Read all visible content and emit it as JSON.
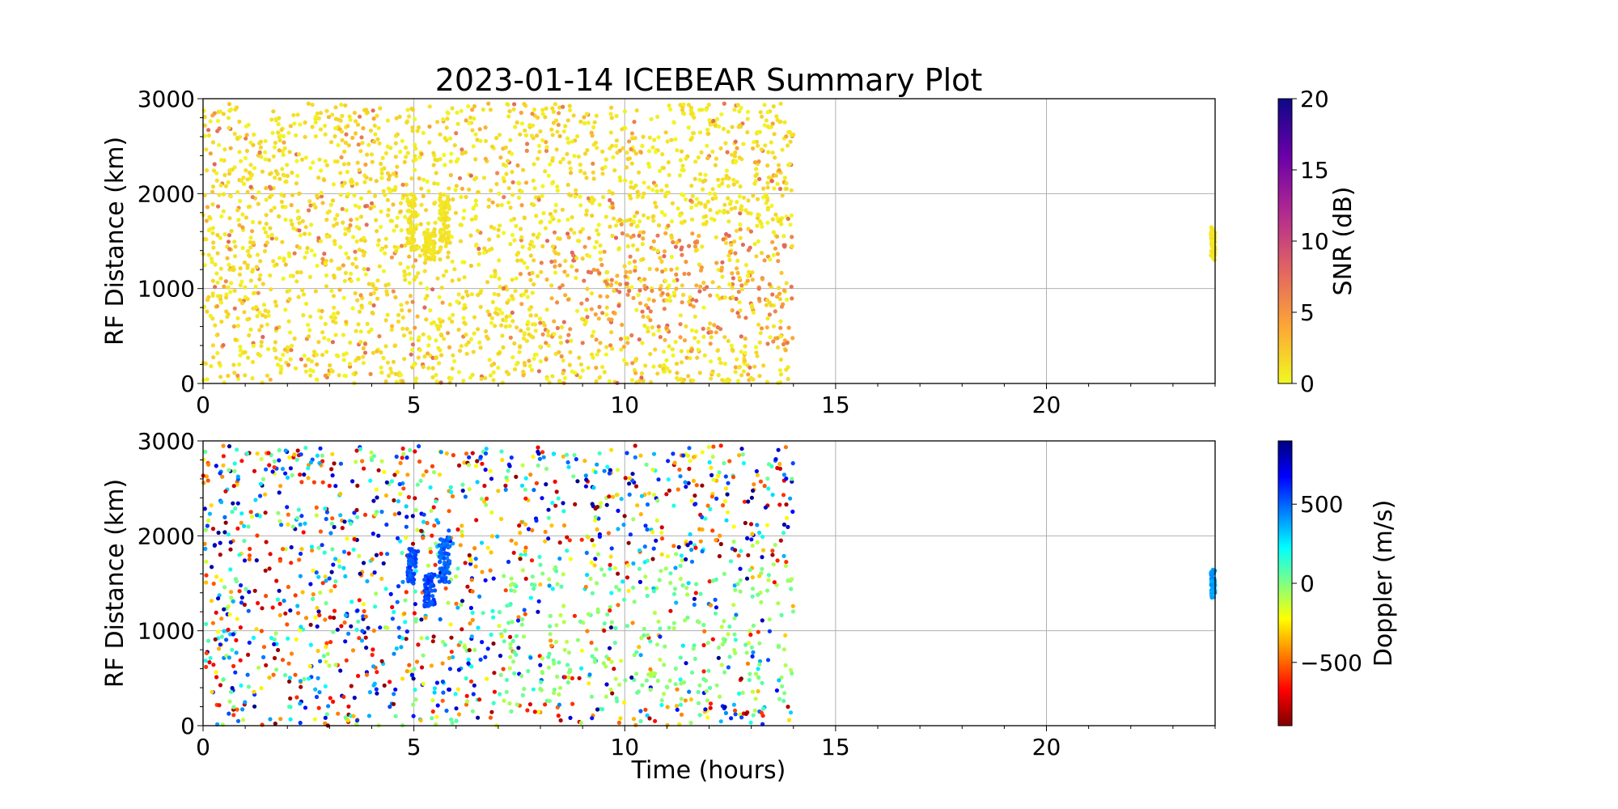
{
  "title": "2023-01-14 ICEBEAR Summary Plot",
  "x_axis": {
    "label": "Time (hours)",
    "range": [
      0,
      24
    ],
    "major_ticks": [
      0,
      5,
      10,
      15,
      20
    ],
    "tick_labels": [
      "0",
      "5",
      "10",
      "15",
      "20"
    ]
  },
  "chart_data": [
    {
      "type": "scatter",
      "ylabel": "RF Distance (km)",
      "xlim": [
        0,
        24
      ],
      "ylim": [
        0,
        3000
      ],
      "y_ticks": [
        0,
        1000,
        2000,
        3000
      ],
      "y_tick_labels": [
        "0",
        "1000",
        "2000",
        "3000"
      ],
      "grid": true,
      "colorbar": {
        "label": "SNR (dB)",
        "colormap": "plasma_r",
        "range": [
          0,
          20
        ],
        "ticks": [
          0,
          5,
          10,
          15,
          20
        ],
        "tick_labels": [
          "0",
          "5",
          "10",
          "15",
          "20"
        ],
        "colors": [
          "#f0f921",
          "#fca636",
          "#e16462",
          "#b12a90",
          "#6a00a8",
          "#0d0887"
        ]
      },
      "series": [
        {
          "color_by": "snr",
          "summary": "dense scatter from 0 to 14 h across 0–3000 km, mostly SNR 0–2 dB (yellow); orange/red points (SNR 3–8 dB) around 500–1500 km between 8 and 14 h",
          "features": [
            {
              "x": [
                4.85,
                5.05
              ],
              "y": [
                1400,
                2000
              ],
              "snr": 1,
              "desc": "vertical streak"
            },
            {
              "x": [
                5.25,
                5.5
              ],
              "y": [
                1300,
                1600
              ],
              "snr": 1,
              "desc": "vertical streak"
            },
            {
              "x": [
                5.6,
                5.85
              ],
              "y": [
                1500,
                2000
              ],
              "snr": 1,
              "desc": "vertical streak"
            },
            {
              "x": [
                23.9,
                24.0
              ],
              "y": [
                1300,
                1650
              ],
              "snr": 1,
              "desc": "points at end of day"
            }
          ]
        }
      ]
    },
    {
      "type": "scatter",
      "ylabel": "RF Distance (km)",
      "xlim": [
        0,
        24
      ],
      "ylim": [
        0,
        3000
      ],
      "y_ticks": [
        0,
        1000,
        2000,
        3000
      ],
      "y_tick_labels": [
        "0",
        "1000",
        "2000",
        "3000"
      ],
      "grid": true,
      "colorbar": {
        "label": "Doppler (m/s)",
        "colormap": "jet_r",
        "range": [
          -900,
          900
        ],
        "ticks": [
          -500,
          0,
          500
        ],
        "tick_labels": [
          "−500",
          "0",
          "500"
        ],
        "colors": [
          "#800000",
          "#ff0000",
          "#ff8000",
          "#ffff00",
          "#80ff80",
          "#00ffff",
          "#0080ff",
          "#0000ff",
          "#000080"
        ]
      },
      "series": [
        {
          "color_by": "doppler",
          "summary": "scatter from 0 to 14 h across 0–3000 km with random Doppler (dark red to dark blue); green points (≈0 m/s) concentrated around 300–1700 km between 8 and 14 h",
          "features": [
            {
              "x": [
                4.85,
                5.05
              ],
              "y": [
                1500,
                1900
              ],
              "doppler": 550,
              "desc": "blue vertical streak"
            },
            {
              "x": [
                5.25,
                5.5
              ],
              "y": [
                1250,
                1600
              ],
              "doppler": 550,
              "desc": "blue vertical streak"
            },
            {
              "x": [
                5.6,
                5.85
              ],
              "y": [
                1500,
                2000
              ],
              "doppler": 500,
              "desc": "blue vertical streak"
            },
            {
              "x": [
                23.9,
                24.0
              ],
              "y": [
                1350,
                1650
              ],
              "doppler": 400,
              "desc": "points at end of day"
            }
          ]
        }
      ]
    }
  ]
}
